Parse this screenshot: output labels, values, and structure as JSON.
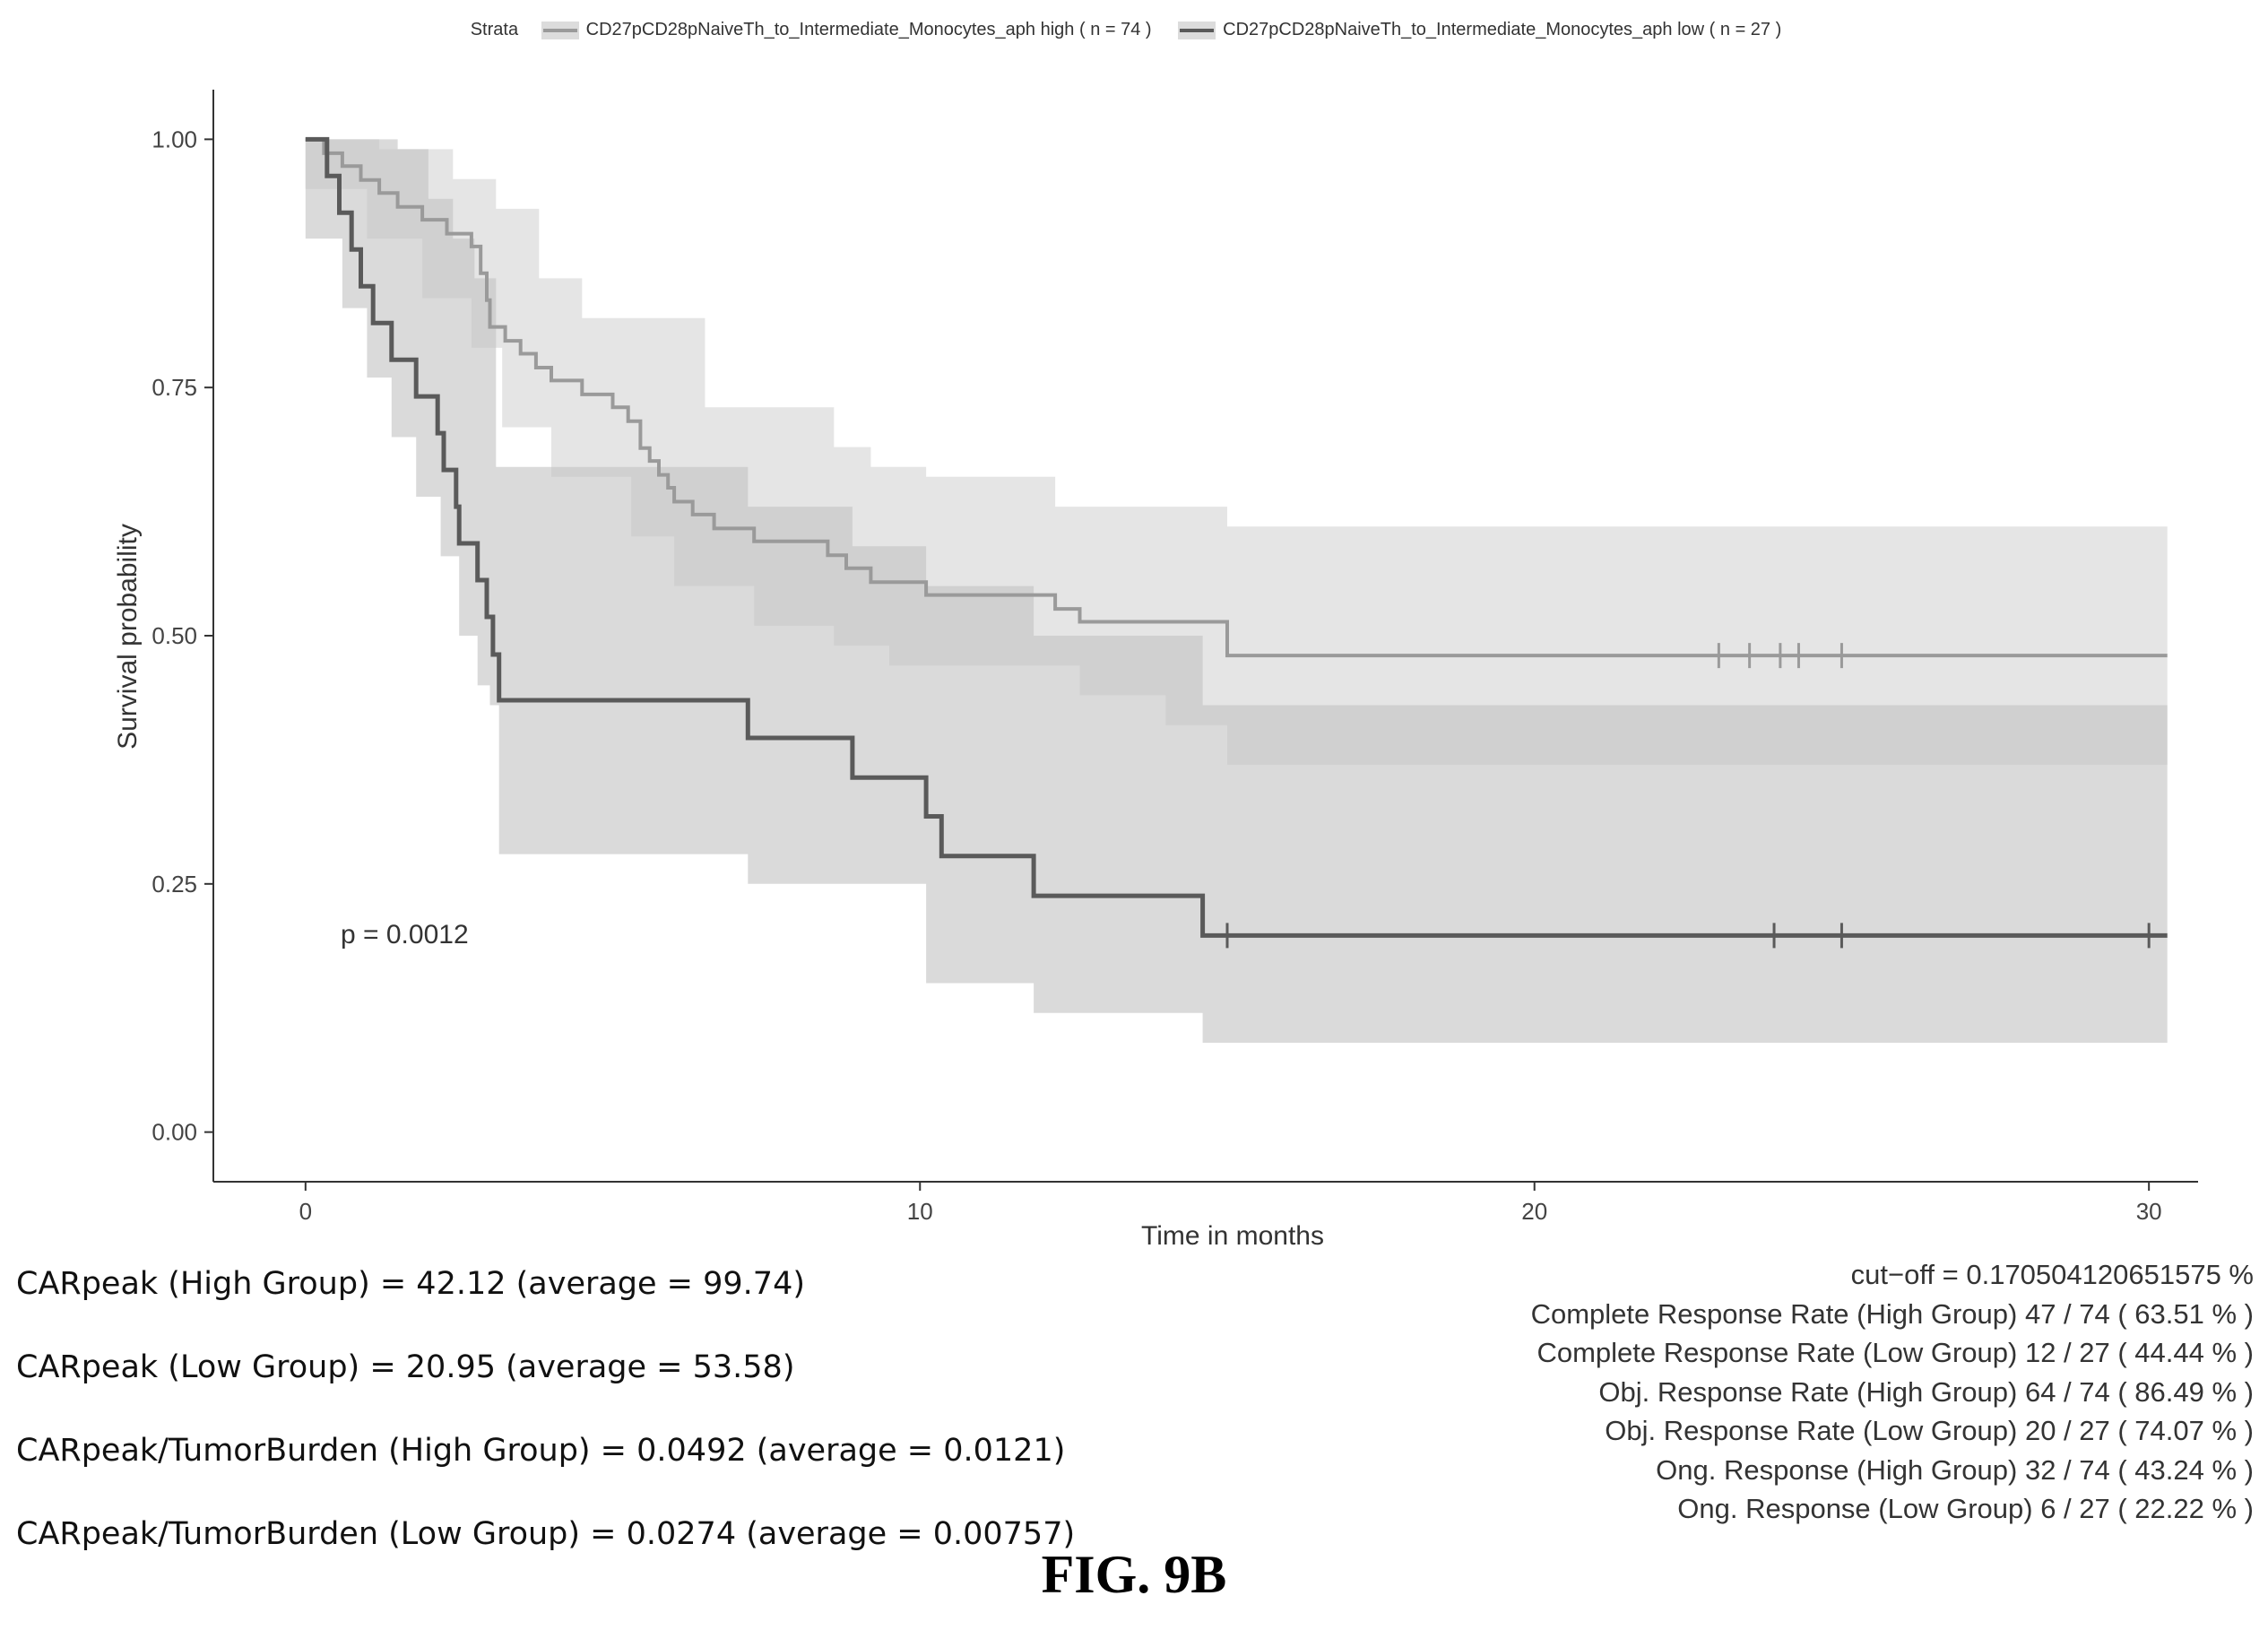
{
  "chart_data": {
    "type": "line",
    "subtype": "kaplan-meier",
    "xlabel": "Time in months",
    "ylabel": "Survival probability",
    "xlim": [
      -1.5,
      30.8
    ],
    "ylim": [
      -0.05,
      1.05
    ],
    "x_ticks": [
      "0",
      "10",
      "20",
      "30"
    ],
    "y_ticks": [
      "0.00",
      "0.25",
      "0.50",
      "0.75",
      "1.00"
    ],
    "grid": false,
    "legend_title": "Strata",
    "legend_position": "top",
    "annotation": "p = 0.0012",
    "series": [
      {
        "name": "CD27pCD28pNaiveTh_to_Intermediate_Monocytes_aph high ( n = 74 )",
        "line_color": "#9a9a9a",
        "band_color": "#d4d4d4",
        "steps": [
          [
            0,
            1.0
          ],
          [
            0.3,
            0.986
          ],
          [
            0.6,
            0.973
          ],
          [
            0.9,
            0.959
          ],
          [
            1.2,
            0.946
          ],
          [
            1.5,
            0.932
          ],
          [
            1.9,
            0.919
          ],
          [
            2.3,
            0.905
          ],
          [
            2.7,
            0.892
          ],
          [
            2.85,
            0.865
          ],
          [
            2.95,
            0.838
          ],
          [
            3.0,
            0.811
          ],
          [
            3.25,
            0.797
          ],
          [
            3.5,
            0.784
          ],
          [
            3.75,
            0.77
          ],
          [
            4.0,
            0.757
          ],
          [
            4.5,
            0.743
          ],
          [
            5.0,
            0.73
          ],
          [
            5.25,
            0.716
          ],
          [
            5.45,
            0.689
          ],
          [
            5.6,
            0.676
          ],
          [
            5.75,
            0.662
          ],
          [
            5.9,
            0.649
          ],
          [
            6.0,
            0.635
          ],
          [
            6.3,
            0.622
          ],
          [
            6.65,
            0.608
          ],
          [
            7.3,
            0.595
          ],
          [
            8.5,
            0.581
          ],
          [
            8.8,
            0.568
          ],
          [
            9.2,
            0.554
          ],
          [
            10.1,
            0.541
          ],
          [
            12.2,
            0.527
          ],
          [
            12.6,
            0.514
          ],
          [
            15.0,
            0.48
          ],
          [
            30.3,
            0.48
          ]
        ],
        "ci_upper": [
          [
            0,
            1.0
          ],
          [
            1.2,
            0.99
          ],
          [
            2.4,
            0.96
          ],
          [
            3.1,
            0.93
          ],
          [
            3.8,
            0.86
          ],
          [
            4.5,
            0.82
          ],
          [
            6.5,
            0.73
          ],
          [
            8.6,
            0.69
          ],
          [
            9.2,
            0.67
          ],
          [
            10.1,
            0.66
          ],
          [
            12.2,
            0.63
          ],
          [
            15.0,
            0.61
          ],
          [
            30.3,
            0.61
          ]
        ],
        "ci_lower": [
          [
            0,
            0.95
          ],
          [
            1.0,
            0.9
          ],
          [
            1.9,
            0.84
          ],
          [
            2.7,
            0.79
          ],
          [
            3.2,
            0.71
          ],
          [
            4.0,
            0.66
          ],
          [
            5.3,
            0.6
          ],
          [
            6.0,
            0.55
          ],
          [
            7.3,
            0.51
          ],
          [
            8.6,
            0.49
          ],
          [
            9.5,
            0.47
          ],
          [
            12.6,
            0.44
          ],
          [
            14.0,
            0.41
          ],
          [
            15.0,
            0.37
          ],
          [
            30.3,
            0.37
          ]
        ],
        "censor_x": [
          23.0,
          23.5,
          24.0,
          24.3,
          25.0
        ]
      },
      {
        "name": "CD27pCD28pNaiveTh_to_Intermediate_Monocytes_aph low ( n = 27 )",
        "line_color": "#5a5a5a",
        "band_color": "#c2c2c2",
        "steps": [
          [
            0,
            1.0
          ],
          [
            0.35,
            0.963
          ],
          [
            0.55,
            0.926
          ],
          [
            0.75,
            0.889
          ],
          [
            0.9,
            0.852
          ],
          [
            1.1,
            0.815
          ],
          [
            1.4,
            0.778
          ],
          [
            1.8,
            0.741
          ],
          [
            2.15,
            0.704
          ],
          [
            2.25,
            0.667
          ],
          [
            2.45,
            0.63
          ],
          [
            2.5,
            0.593
          ],
          [
            2.8,
            0.556
          ],
          [
            2.95,
            0.519
          ],
          [
            3.05,
            0.481
          ],
          [
            3.15,
            0.435
          ],
          [
            7.2,
            0.397
          ],
          [
            8.9,
            0.357
          ],
          [
            10.1,
            0.318
          ],
          [
            10.35,
            0.278
          ],
          [
            11.85,
            0.238
          ],
          [
            14.6,
            0.198
          ],
          [
            30.3,
            0.198
          ]
        ],
        "ci_upper": [
          [
            0,
            1.0
          ],
          [
            1.0,
            1.0
          ],
          [
            1.5,
            0.99
          ],
          [
            2.0,
            0.94
          ],
          [
            2.4,
            0.9
          ],
          [
            2.75,
            0.86
          ],
          [
            3.1,
            0.67
          ],
          [
            7.2,
            0.63
          ],
          [
            8.9,
            0.59
          ],
          [
            10.1,
            0.55
          ],
          [
            11.85,
            0.5
          ],
          [
            14.6,
            0.43
          ],
          [
            30.3,
            0.43
          ]
        ],
        "ci_lower": [
          [
            0,
            0.9
          ],
          [
            0.6,
            0.83
          ],
          [
            1.0,
            0.76
          ],
          [
            1.4,
            0.7
          ],
          [
            1.8,
            0.64
          ],
          [
            2.2,
            0.58
          ],
          [
            2.5,
            0.5
          ],
          [
            2.8,
            0.45
          ],
          [
            3.0,
            0.43
          ],
          [
            3.15,
            0.28
          ],
          [
            7.2,
            0.25
          ],
          [
            10.1,
            0.15
          ],
          [
            11.85,
            0.12
          ],
          [
            14.6,
            0.09
          ],
          [
            30.3,
            0.09
          ]
        ],
        "censor_x": [
          15.0,
          23.9,
          25.0,
          30.0
        ]
      }
    ]
  },
  "left_stats": [
    "CARpeak (High Group) = 42.12 (average = 99.74)",
    "CARpeak (Low Group) = 20.95 (average = 53.58)",
    "CARpeak/TumorBurden (High Group) = 0.0492 (average = 0.0121)",
    "CARpeak/TumorBurden (Low Group) = 0.0274 (average = 0.00757)"
  ],
  "right_stats": [
    "cut−off = 0.170504120651575 %",
    "Complete Response Rate (High Group) 47 / 74 ( 63.51 % )",
    "Complete Response Rate (Low Group) 12 / 27 ( 44.44 % )",
    "Obj. Response Rate (High Group) 64 / 74 ( 86.49 % )",
    "Obj. Response Rate (Low Group) 20 / 27 ( 74.07 % )",
    "Ong. Response (High Group) 32 / 74 ( 43.24 % )",
    "Ong. Response (Low Group) 6 / 27 ( 22.22 % )"
  ],
  "figure_label": "FIG. 9B"
}
